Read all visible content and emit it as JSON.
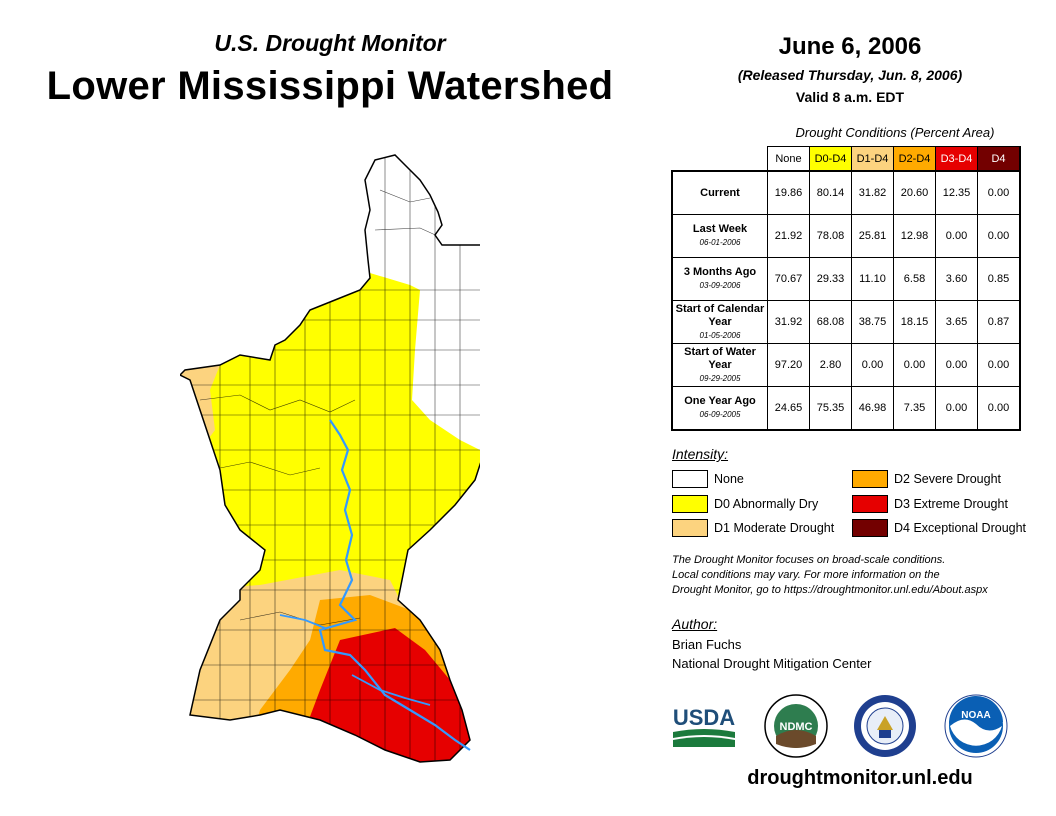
{
  "header": {
    "subtitle": "U.S. Drought Monitor",
    "title": "Lower Mississippi Watershed",
    "date": "June 6, 2006",
    "released": "(Released Thursday, Jun. 8, 2006)",
    "valid": "Valid 8 a.m. EDT"
  },
  "table": {
    "caption": "Drought Conditions (Percent Area)",
    "columns": [
      "None",
      "D0-D4",
      "D1-D4",
      "D2-D4",
      "D3-D4",
      "D4"
    ],
    "column_colors": [
      "#ffffff",
      "#ffff00",
      "#fcd37f",
      "#ffaa00",
      "#e60000",
      "#730000"
    ],
    "column_text_colors": [
      "#000000",
      "#000000",
      "#000000",
      "#000000",
      "#ffffff",
      "#ffffff"
    ],
    "rows": [
      {
        "label": "Current",
        "date": "",
        "values": [
          "19.86",
          "80.14",
          "31.82",
          "20.60",
          "12.35",
          "0.00"
        ]
      },
      {
        "label": "Last Week",
        "date": "06-01-2006",
        "values": [
          "21.92",
          "78.08",
          "25.81",
          "12.98",
          "0.00",
          "0.00"
        ]
      },
      {
        "label": "3 Months Ago",
        "date": "03-09-2006",
        "values": [
          "70.67",
          "29.33",
          "11.10",
          "6.58",
          "3.60",
          "0.85"
        ]
      },
      {
        "label": "Start of Calendar Year",
        "date": "01-05-2006",
        "values": [
          "31.92",
          "68.08",
          "38.75",
          "18.15",
          "3.65",
          "0.87"
        ]
      },
      {
        "label": "Start of Water Year",
        "date": "09-29-2005",
        "values": [
          "97.20",
          "2.80",
          "0.00",
          "0.00",
          "0.00",
          "0.00"
        ]
      },
      {
        "label": "One Year Ago",
        "date": "06-09-2005",
        "values": [
          "24.65",
          "75.35",
          "46.98",
          "7.35",
          "0.00",
          "0.00"
        ]
      }
    ]
  },
  "legend": {
    "title": "Intensity:",
    "items": [
      {
        "label": "None",
        "color": "#ffffff"
      },
      {
        "label": "D0 Abnormally Dry",
        "color": "#ffff00"
      },
      {
        "label": "D1 Moderate Drought",
        "color": "#fcd37f"
      },
      {
        "label": "D2 Severe Drought",
        "color": "#ffaa00"
      },
      {
        "label": "D3 Extreme Drought",
        "color": "#e60000"
      },
      {
        "label": "D4 Exceptional Drought",
        "color": "#730000"
      }
    ]
  },
  "note": {
    "line1": "The Drought Monitor focuses on broad-scale conditions.",
    "line2": "Local conditions may vary. For more information on the",
    "line3": "Drought Monitor, go to https://droughtmonitor.unl.edu/About.aspx"
  },
  "author": {
    "title": "Author:",
    "name": "Brian Fuchs",
    "org": "National Drought Mitigation Center"
  },
  "logos": {
    "usda": "USDA",
    "ndmc": "NDMC",
    "noaa": "NOAA"
  },
  "footer": {
    "url": "droughtmonitor.unl.edu"
  },
  "map": {
    "river_color": "#3399ff"
  }
}
